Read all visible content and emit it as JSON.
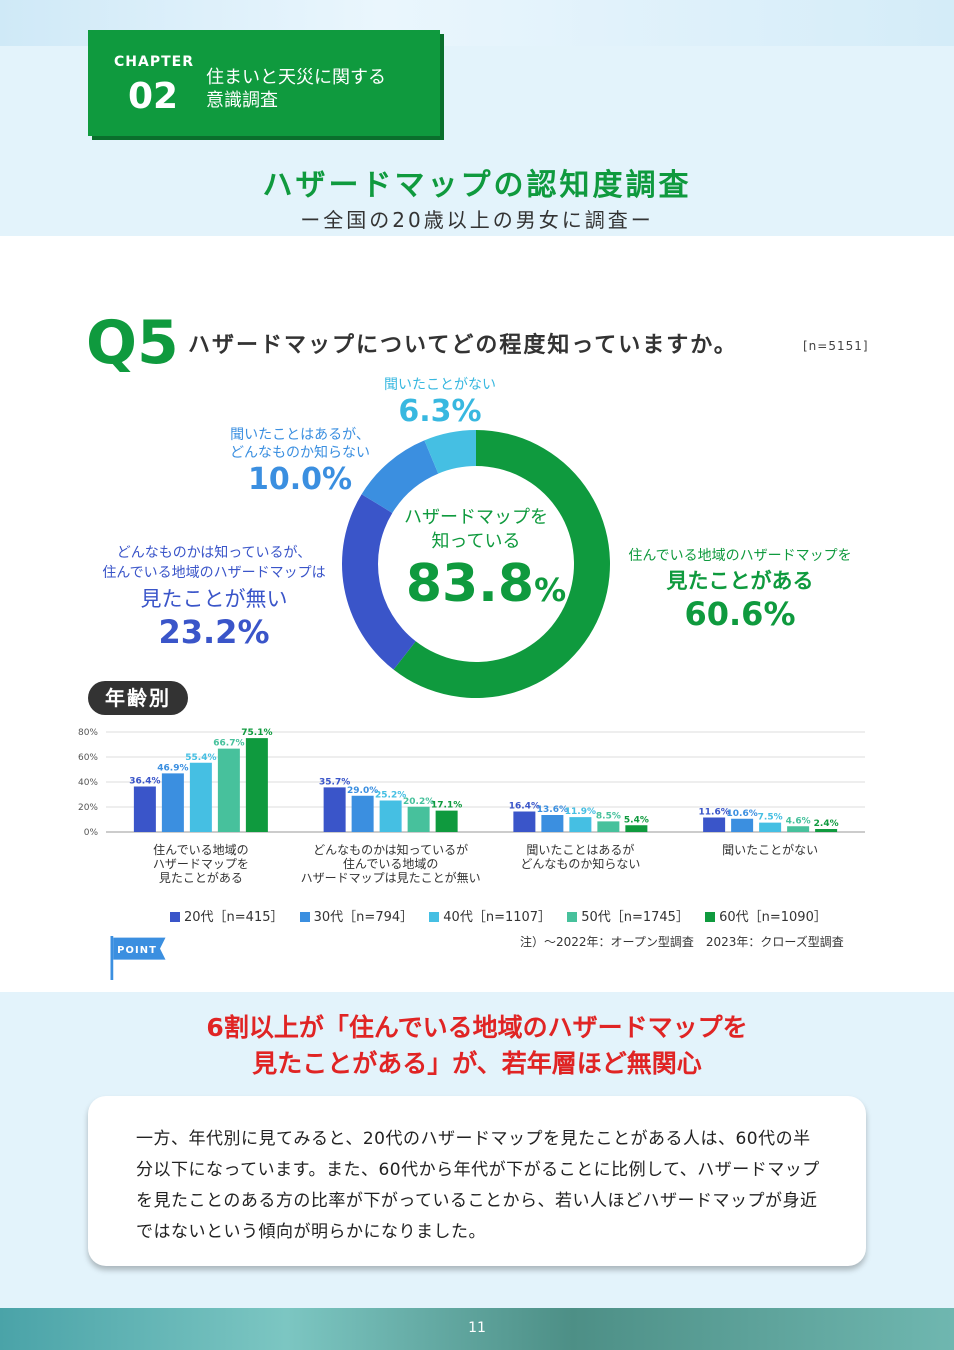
{
  "chapter": {
    "label": "CHAPTER",
    "number": "02",
    "title_line1": "住まいと天災に関する",
    "title_line2": "意識調査"
  },
  "heading": {
    "title": "ハザードマップの認知度調査",
    "subtitle": "ー全国の20歳以上の男女に調査ー"
  },
  "question": {
    "number": "Q5",
    "text": "ハザードマップについてどの程度知っていますか。",
    "n": "[n=5151]"
  },
  "donut": {
    "center_line1": "ハザードマップを",
    "center_line2": "知っている",
    "center_value": "83.8",
    "center_unit": "%",
    "labels": {
      "seen": {
        "line1": "住んでいる地域のハザードマップを",
        "line2": "見たことがある",
        "value": "60.6%"
      },
      "not_seen": {
        "line1": "どんなものかは知っているが、",
        "line2": "住んでいる地域のハザードマップは",
        "line3": "見たことが無い",
        "value": "23.2%"
      },
      "heard": {
        "line1": "聞いたことはあるが、",
        "line2": "どんなものか知らない",
        "value": "10.0%"
      },
      "never": {
        "line1": "聞いたことがない",
        "value": "6.3%"
      }
    },
    "colors": [
      "#0f9a3e",
      "#3a55c9",
      "#3b8fe0",
      "#45bfe3"
    ]
  },
  "age_tag": "年齢別",
  "chart_data": [
    {
      "type": "pie",
      "title": "",
      "values": [
        60.6,
        23.2,
        10.0,
        6.3
      ],
      "categories": [
        "住んでいる地域のハザードマップを見たことがある",
        "どんなものかは知っているが、住んでいる地域のハザードマップは見たことが無い",
        "聞いたことはあるが、どんなものか知らない",
        "聞いたことがない"
      ]
    },
    {
      "type": "bar",
      "title": "",
      "ylim": [
        0,
        80
      ],
      "yticks": [
        "0%",
        "20%",
        "40%",
        "60%",
        "80%"
      ],
      "categories": [
        [
          "住んでいる地域の",
          "ハザードマップを",
          "見たことがある"
        ],
        [
          "どんなものかは知っているが",
          "住んでいる地域の",
          "ハザードマップは見たことが無い"
        ],
        [
          "聞いたことはあるが",
          "どんなものか知らない"
        ],
        [
          "聞いたことがない"
        ]
      ],
      "series": [
        {
          "name": "20代［n=415］",
          "color": "#3a55c9",
          "values": [
            36.4,
            35.7,
            16.4,
            11.6
          ],
          "labels": [
            "36.4%",
            "35.7%",
            "16.4%",
            "11.6%"
          ]
        },
        {
          "name": "30代［n=794］",
          "color": "#3b8fe0",
          "values": [
            46.9,
            29.0,
            13.6,
            10.6
          ],
          "labels": [
            "46.9%",
            "29.0%",
            "13.6%",
            "10.6%"
          ]
        },
        {
          "name": "40代［n=1107］",
          "color": "#45bfe3",
          "values": [
            55.4,
            25.2,
            11.9,
            7.5
          ],
          "labels": [
            "55.4%",
            "25.2%",
            "11.9%",
            "7.5%"
          ]
        },
        {
          "name": "50代［n=1745］",
          "color": "#47c19c",
          "values": [
            66.7,
            20.2,
            8.5,
            4.6
          ],
          "labels": [
            "66.7%",
            "20.2%",
            "8.5%",
            "4.6%"
          ]
        },
        {
          "name": "60代［n=1090］",
          "color": "#0f9a3e",
          "values": [
            75.1,
            17.1,
            5.4,
            2.4
          ],
          "labels": [
            "75.1%",
            "17.1%",
            "5.4%",
            "2.4%"
          ]
        }
      ]
    }
  ],
  "note": "注）〜2022年：オープン型調査　2023年：クローズ型調査",
  "point": {
    "label": "POINT",
    "title_line1": "6割以上が「住んでいる地域のハザードマップを",
    "title_line2": "見たことがある」が、若年層ほど無関心",
    "body": "一方、年代別に見てみると、20代のハザードマップを見たことがある人は、60代の半分以下になっています。また、60代から年代が下がることに比例して、ハザードマップを見たことのある方の比率が下がっていることから、若い人ほどハザードマップが身近ではないという傾向が明らかになりました。"
  },
  "page_number": "11"
}
